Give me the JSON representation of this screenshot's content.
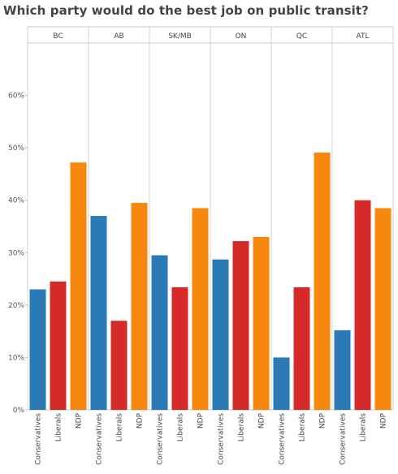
{
  "chart_data": {
    "type": "bar",
    "title": "Which party would do the best job on public transit?",
    "facets": [
      "BC",
      "AB",
      "SK/MB",
      "ON",
      "QC",
      "ATL"
    ],
    "categories": [
      "Conservatives",
      "Liberals",
      "NDP"
    ],
    "series_colors": {
      "Conservatives": "#2a7ab5",
      "Liberals": "#d62a2a",
      "NDP": "#f7880f"
    },
    "values": {
      "BC": [
        23.0,
        24.5,
        47.2
      ],
      "AB": [
        37.0,
        17.0,
        39.5
      ],
      "SK/MB": [
        29.5,
        23.4,
        38.5
      ],
      "ON": [
        28.7,
        32.2,
        33.0
      ],
      "QC": [
        10.0,
        23.4,
        49.1
      ],
      "ATL": [
        15.2,
        40.0,
        38.5
      ]
    },
    "y_ticks": [
      "0%",
      "10%",
      "20%",
      "30%",
      "40%",
      "50%",
      "60%"
    ],
    "ylim": [
      0,
      70
    ],
    "grid": false
  }
}
